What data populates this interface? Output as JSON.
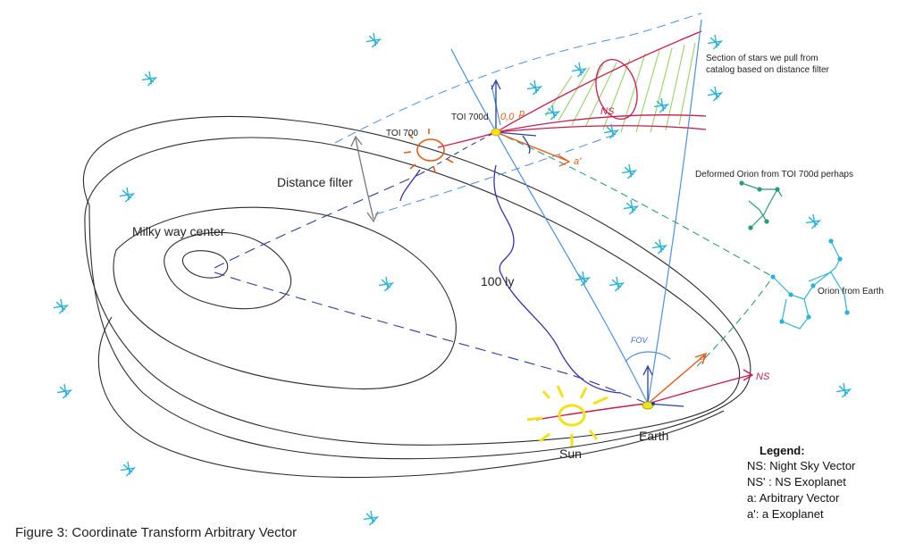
{
  "labels": {
    "milky_way_center": "Milky way center",
    "distance_filter": "Distance filter",
    "toi_700": "TOI 700",
    "toi_700d": "TOI 700d",
    "section_line1": "Section of stars we pull from",
    "section_line2": "catalog based on distance filter",
    "deformed_orion": "Deformed Orion from TOI 700d perhaps",
    "orion_from_earth": "Orion from Earth",
    "hundred_ly": "100 ly",
    "sun": "Sun",
    "earth": "Earth",
    "fov": "FOV",
    "ns_earth": "NS",
    "ns_exo": "NS",
    "a_earth": "a",
    "a_exo": "a'",
    "origin_exo": "0,0",
    "p_exo": "p"
  },
  "legend": {
    "title": "Legend:",
    "items": [
      "NS: Night Sky Vector",
      "NS' : NS Exoplanet",
      "a: Arbitrary Vector",
      "a': a Exoplanet"
    ]
  },
  "caption": "Figure 3: Coordinate Transform Arbitrary Vector",
  "colors": {
    "galaxy": "#2b2b2b",
    "star": "#2bb3d6",
    "sun": "#f2e21b",
    "red_vector": "#c8194e",
    "orange": "#e35b17",
    "fov_line": "#4d8fe0",
    "purple": "#3a2fa8",
    "dashed_blue": "#2a3e9e",
    "green_constellation": "#2a9a7a",
    "hatch": "#9ad06a"
  }
}
